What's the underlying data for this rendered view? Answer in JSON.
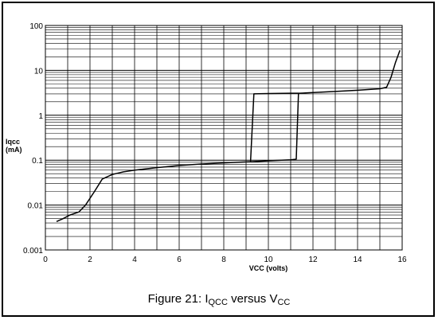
{
  "chart_data": {
    "type": "line",
    "caption": {
      "prefix": "Figure 21: I",
      "sub1": "QCC",
      "middle": " versus V",
      "sub2": "CC"
    },
    "xlabel": "VCC (volts)",
    "ylabel": [
      "Iqcc",
      "(mA)"
    ],
    "x_scale": "linear",
    "y_scale": "log",
    "xlim": [
      0,
      16
    ],
    "ylim": [
      0.001,
      100
    ],
    "x_ticks": [
      "0",
      "2",
      "4",
      "6",
      "8",
      "10",
      "12",
      "14",
      "16"
    ],
    "y_ticks": [
      "0.001",
      "0.01",
      "0.1",
      "1",
      "10",
      "100"
    ],
    "grid": true,
    "line_color": "#000000",
    "series": [
      {
        "points": [
          [
            0.5,
            0.0043
          ],
          [
            0.8,
            0.005
          ],
          [
            1.1,
            0.006
          ],
          [
            1.5,
            0.007
          ],
          [
            1.8,
            0.01
          ],
          [
            2.2,
            0.02
          ],
          [
            2.55,
            0.038
          ],
          [
            3.0,
            0.048
          ],
          [
            3.5,
            0.055
          ],
          [
            4.0,
            0.06
          ],
          [
            5.0,
            0.068
          ],
          [
            6.0,
            0.076
          ],
          [
            7.0,
            0.082
          ],
          [
            8.0,
            0.087
          ],
          [
            9.1,
            0.092
          ],
          [
            9.2,
            0.092
          ],
          [
            9.35,
            3.0
          ],
          [
            10.0,
            3.05
          ],
          [
            11.0,
            3.1
          ],
          [
            11.4,
            3.1
          ],
          [
            12.0,
            3.2
          ],
          [
            13.0,
            3.4
          ],
          [
            14.0,
            3.6
          ],
          [
            15.0,
            3.9
          ],
          [
            15.3,
            4.2
          ],
          [
            15.5,
            7.0
          ],
          [
            15.7,
            15.0
          ],
          [
            15.9,
            28.0
          ]
        ]
      },
      {
        "points": [
          [
            9.2,
            0.092
          ],
          [
            10.0,
            0.097
          ],
          [
            11.0,
            0.102
          ],
          [
            11.25,
            0.105
          ],
          [
            11.35,
            3.1
          ]
        ]
      }
    ]
  }
}
